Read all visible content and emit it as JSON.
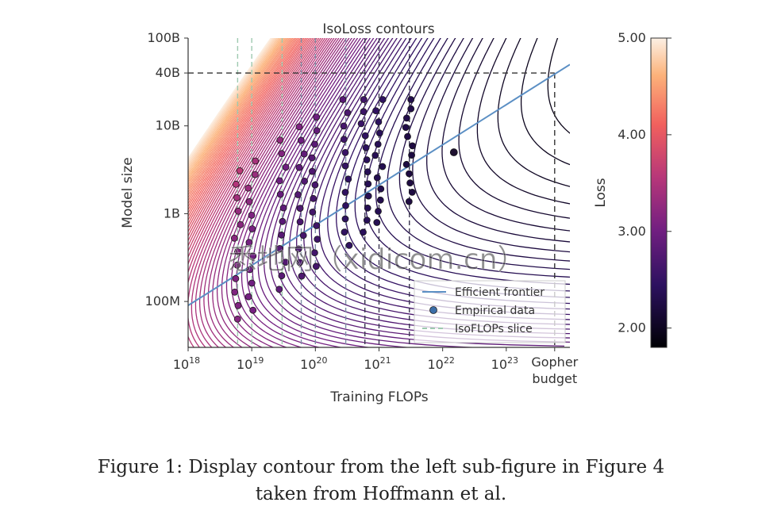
{
  "chart_data": {
    "type": "contour",
    "title": "IsoLoss contours",
    "xlabel": "Training FLOPs",
    "ylabel": "Model size",
    "x_scale": "log",
    "y_scale": "log",
    "xlim": [
      1e+18,
      1e+24
    ],
    "ylim": [
      30000000.0,
      100000000000.0
    ],
    "x_ticks": [
      {
        "value": 1e+18,
        "base": "10",
        "exp": "18"
      },
      {
        "value": 1e+19,
        "base": "10",
        "exp": "19"
      },
      {
        "value": 1e+20,
        "base": "10",
        "exp": "20"
      },
      {
        "value": 1e+21,
        "base": "10",
        "exp": "21"
      },
      {
        "value": 1e+22,
        "base": "10",
        "exp": "22"
      },
      {
        "value": 1e+23,
        "base": "10",
        "exp": "23"
      }
    ],
    "x_extra_tick": {
      "value": 5.76e+23,
      "label_line1": "Gopher",
      "label_line2": "budget"
    },
    "y_ticks": [
      {
        "value": 100000000.0,
        "label": "100M"
      },
      {
        "value": 1000000000.0,
        "label": "1B"
      },
      {
        "value": 10000000000.0,
        "label": "10B"
      },
      {
        "value": 40000000000.0,
        "label": "40B"
      },
      {
        "value": 100000000000.0,
        "label": "100B"
      }
    ],
    "gopher_budget_flops": 5.76e+23,
    "optimal_model_size": 40000000000.0,
    "efficient_frontier": {
      "name": "Efficient frontier",
      "points": [
        [
          1e+18,
          90000000.0
        ],
        [
          1e+24,
          50000000000.0
        ]
      ]
    },
    "empirical_data_label": "Empirical data",
    "isoflops_label": "IsoFLOPs slice",
    "isoflops_slices": [
      6e+18,
      1e+19,
      3e+19,
      6e+19,
      1e+20,
      3e+20,
      6e+20,
      1e+21,
      3e+21
    ],
    "highlight_point": [
      1.5e+22,
      5000000000.0
    ],
    "colorbar": {
      "label": "Loss",
      "min": 1.8,
      "max": 5.0,
      "ticks": [
        {
          "value": 5.0,
          "label": "5.00"
        },
        {
          "value": 4.0,
          "label": "4.00"
        },
        {
          "value": 3.0,
          "label": "3.00"
        },
        {
          "value": 2.0,
          "label": "2.00"
        }
      ]
    },
    "colors": {
      "frontier": "#5b8fc4",
      "isoflops": "#9ec9b0",
      "contour_low": "#000004",
      "contour_high": "#fcfdbf"
    },
    "legend_position": "lower-right",
    "grid": false
  },
  "caption": {
    "line1": "Figure 1: Display contour from the left sub-figure in Figure 4",
    "line2": "taken from Hoffmann et al."
  },
  "watermark": "悉地网（xidicom.cn）"
}
